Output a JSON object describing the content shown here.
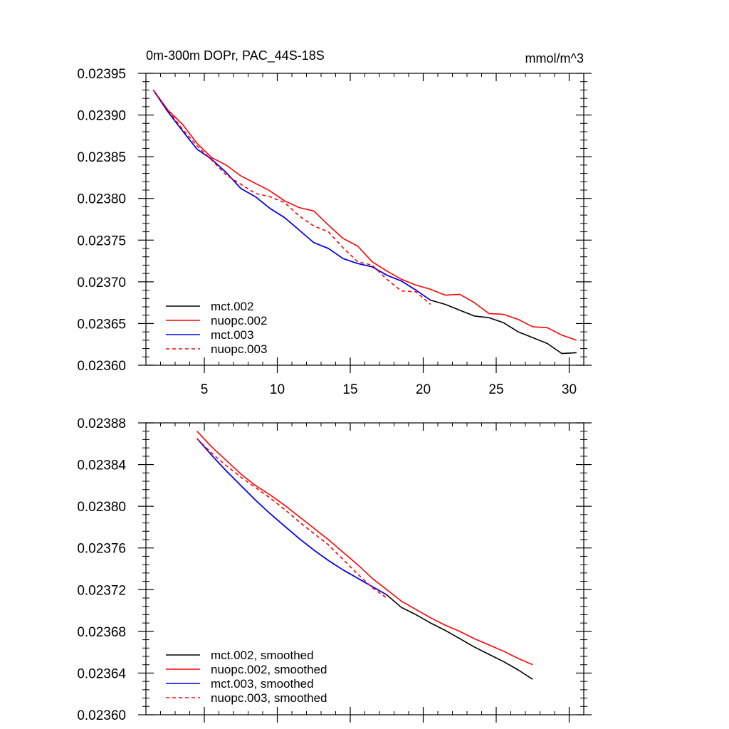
{
  "chart_data": [
    {
      "type": "line",
      "title": "0m-300m DOPr, PAC_44S-18S",
      "units": "mmol/m^3",
      "xlim": [
        1,
        31
      ],
      "ylim": [
        0.0236,
        0.02395
      ],
      "xticks": [
        5,
        10,
        15,
        20,
        25,
        30
      ],
      "yticks": [
        0.0236,
        0.02365,
        0.0237,
        0.02375,
        0.0238,
        0.02385,
        0.0239,
        0.02395
      ],
      "ytick_labels": [
        "0.02360",
        "0.02365",
        "0.02370",
        "0.02375",
        "0.02380",
        "0.02385",
        "0.02390",
        "0.02395"
      ],
      "legend_position": "bottom-left",
      "series": [
        {
          "name": "mct.002",
          "color": "#000000",
          "dashed": false,
          "x": [
            1.5,
            2.5,
            3.5,
            4.5,
            5.5,
            6.5,
            7.5,
            8.5,
            9.5,
            10.5,
            11.5,
            12.5,
            13.5,
            14.5,
            15.5,
            16.5,
            17.5,
            18.5,
            19.5,
            20.5,
            21.5,
            22.5,
            23.5,
            24.5,
            25.5,
            26.5,
            27.5,
            28.5,
            29.5,
            30.5
          ],
          "y": [
            0.02393,
            0.023904,
            0.023881,
            0.023859,
            0.023847,
            0.023831,
            0.023812,
            0.023802,
            0.023788,
            0.023777,
            0.023762,
            0.023747,
            0.02374,
            0.023728,
            0.023722,
            0.023718,
            0.023708,
            0.023701,
            0.02369,
            0.023678,
            0.023673,
            0.023666,
            0.023659,
            0.023657,
            0.023651,
            0.02364,
            0.023633,
            0.023626,
            0.023614,
            0.023615
          ]
        },
        {
          "name": "nuopc.002",
          "color": "#ff0000",
          "dashed": false,
          "x": [
            1.5,
            2.5,
            3.5,
            4.5,
            5.5,
            6.5,
            7.5,
            8.5,
            9.5,
            10.5,
            11.5,
            12.5,
            13.5,
            14.5,
            15.5,
            16.5,
            17.5,
            18.5,
            19.5,
            20.5,
            21.5,
            22.5,
            23.5,
            24.5,
            25.5,
            26.5,
            27.5,
            28.5,
            29.5,
            30.5
          ],
          "y": [
            0.02393,
            0.023906,
            0.023889,
            0.023866,
            0.023849,
            0.02384,
            0.023827,
            0.023818,
            0.023809,
            0.023797,
            0.023789,
            0.023785,
            0.023768,
            0.023752,
            0.023743,
            0.023724,
            0.023713,
            0.023703,
            0.023696,
            0.023691,
            0.023684,
            0.023685,
            0.023675,
            0.023662,
            0.023661,
            0.023655,
            0.023646,
            0.023645,
            0.023636,
            0.02363
          ]
        },
        {
          "name": "mct.003",
          "color": "#0000ff",
          "dashed": false,
          "x": [
            1.5,
            2.5,
            3.5,
            4.5,
            5.5,
            6.5,
            7.5,
            8.5,
            9.5,
            10.5,
            11.5,
            12.5,
            13.5,
            14.5,
            15.5,
            16.5,
            17.5,
            18.5,
            19.5,
            20.5
          ],
          "y": [
            0.02393,
            0.023904,
            0.023881,
            0.023859,
            0.023847,
            0.023831,
            0.023812,
            0.023802,
            0.023788,
            0.023777,
            0.023762,
            0.023747,
            0.02374,
            0.023728,
            0.023722,
            0.023718,
            0.023708,
            0.023701,
            0.02369,
            0.023678
          ]
        },
        {
          "name": "nuopc.003",
          "color": "#ff0000",
          "dashed": true,
          "x": [
            1.5,
            2.5,
            3.5,
            4.5,
            5.5,
            6.5,
            7.5,
            8.5,
            9.5,
            10.5,
            11.5,
            12.5,
            13.5,
            14.5,
            15.5,
            16.5,
            17.5,
            18.5,
            19.5,
            20.5
          ],
          "y": [
            0.02393,
            0.023906,
            0.023883,
            0.023863,
            0.023846,
            0.023828,
            0.023817,
            0.023806,
            0.023802,
            0.023795,
            0.023779,
            0.023767,
            0.02376,
            0.023741,
            0.023724,
            0.02372,
            0.023703,
            0.023689,
            0.023688,
            0.023673
          ]
        }
      ]
    },
    {
      "type": "line",
      "xlim": [
        1,
        31
      ],
      "ylim": [
        0.0236,
        0.02388
      ],
      "xticks": [
        5,
        10,
        15,
        20,
        25,
        30
      ],
      "yticks": [
        0.0236,
        0.02364,
        0.02368,
        0.02372,
        0.02376,
        0.0238,
        0.02384,
        0.02388
      ],
      "ytick_labels": [
        "0.02360",
        "0.02364",
        "0.02368",
        "0.02372",
        "0.02376",
        "0.02380",
        "0.02384",
        "0.02388"
      ],
      "legend_position": "bottom-left",
      "series": [
        {
          "name": "mct.002, smoothed",
          "color": "#000000",
          "dashed": false,
          "x": [
            4.5,
            5.5,
            6.5,
            7.5,
            8.5,
            9.5,
            10.5,
            11.5,
            12.5,
            13.5,
            14.5,
            15.5,
            16.5,
            17.5,
            18.5,
            19.5,
            20.5,
            21.5,
            22.5,
            23.5,
            24.5,
            25.5,
            26.5,
            27.5
          ],
          "y": [
            0.023865,
            0.023849,
            0.023834,
            0.02382,
            0.023806,
            0.023793,
            0.023781,
            0.023769,
            0.023758,
            0.023748,
            0.023739,
            0.023731,
            0.023723,
            0.023715,
            0.023703,
            0.023696,
            0.023688,
            0.023681,
            0.023673,
            0.023665,
            0.023658,
            0.023651,
            0.023643,
            0.023634
          ]
        },
        {
          "name": "nuopc.002, smoothed",
          "color": "#ff0000",
          "dashed": false,
          "x": [
            4.5,
            5.5,
            6.5,
            7.5,
            8.5,
            9.5,
            10.5,
            11.5,
            12.5,
            13.5,
            14.5,
            15.5,
            16.5,
            17.5,
            18.5,
            19.5,
            20.5,
            21.5,
            22.5,
            23.5,
            24.5,
            25.5,
            26.5,
            27.5
          ],
          "y": [
            0.023872,
            0.023857,
            0.023844,
            0.023831,
            0.02382,
            0.023811,
            0.023801,
            0.02379,
            0.023779,
            0.023768,
            0.023756,
            0.023744,
            0.023731,
            0.02372,
            0.023709,
            0.023701,
            0.023693,
            0.023686,
            0.02368,
            0.023673,
            0.023667,
            0.023661,
            0.023654,
            0.023648
          ]
        },
        {
          "name": "mct.003, smoothed",
          "color": "#0000ff",
          "dashed": false,
          "x": [
            4.5,
            5.5,
            6.5,
            7.5,
            8.5,
            9.5,
            10.5,
            11.5,
            12.5,
            13.5,
            14.5,
            15.5,
            16.5,
            17.5
          ],
          "y": [
            0.023865,
            0.023849,
            0.023834,
            0.02382,
            0.023806,
            0.023793,
            0.023781,
            0.023769,
            0.023758,
            0.023748,
            0.023739,
            0.023731,
            0.023723,
            0.023715
          ]
        },
        {
          "name": "nuopc.003, smoothed",
          "color": "#ff0000",
          "dashed": true,
          "x": [
            4.5,
            5.5,
            6.5,
            7.5,
            8.5,
            9.5,
            10.5,
            11.5,
            12.5,
            13.5,
            14.5,
            15.5,
            16.5,
            17.5
          ],
          "y": [
            0.023865,
            0.023851,
            0.023839,
            0.023828,
            0.023818,
            0.023808,
            0.023797,
            0.023785,
            0.023774,
            0.023763,
            0.023749,
            0.023735,
            0.023722,
            0.023712
          ]
        }
      ]
    }
  ]
}
